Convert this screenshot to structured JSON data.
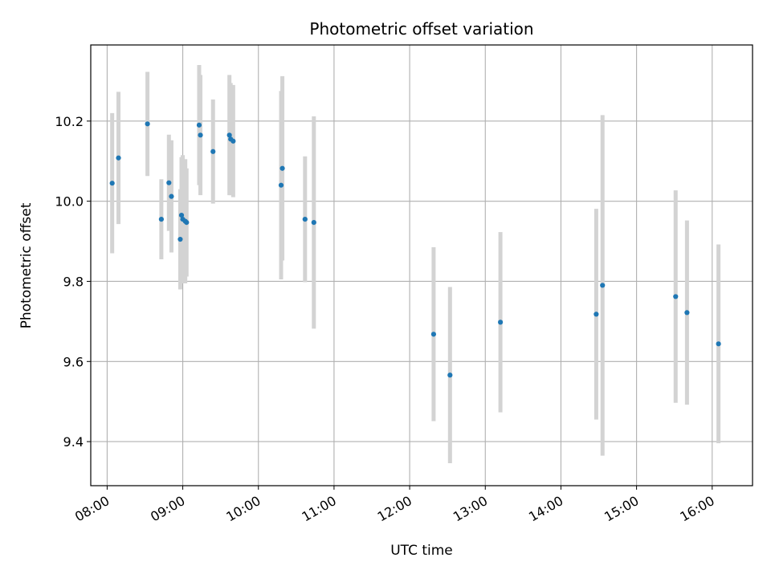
{
  "chart_data": {
    "type": "scatter",
    "title": "Photometric offset variation",
    "xlabel": "UTC time",
    "ylabel": "Photometric offset",
    "grid": true,
    "x_tick_labels": [
      "08:00",
      "09:00",
      "10:00",
      "11:00",
      "12:00",
      "13:00",
      "14:00",
      "15:00",
      "16:00"
    ],
    "y_tick_labels": [
      "9.4",
      "9.6",
      "9.8",
      "10.0",
      "10.2"
    ],
    "xlim": [
      "07:47",
      "16:32"
    ],
    "ylim": [
      9.29,
      10.39
    ],
    "colors": {
      "points": "#1f77b4",
      "errorbars": "#d3d3d3",
      "grid": "#b0b0b0"
    },
    "series": [
      {
        "points": [
          {
            "x": "08:04",
            "y": 10.045,
            "yerr": 0.175
          },
          {
            "x": "08:09",
            "y": 10.108,
            "yerr": 0.165
          },
          {
            "x": "08:32",
            "y": 10.193,
            "yerr": 0.13
          },
          {
            "x": "08:43",
            "y": 9.955,
            "yerr": 0.1
          },
          {
            "x": "08:49",
            "y": 10.046,
            "yerr": 0.12
          },
          {
            "x": "08:51",
            "y": 10.012,
            "yerr": 0.14
          },
          {
            "x": "08:58",
            "y": 9.905,
            "yerr": 0.125
          },
          {
            "x": "08:59",
            "y": 9.965,
            "yerr": 0.145
          },
          {
            "x": "09:00",
            "y": 9.955,
            "yerr": 0.16
          },
          {
            "x": "09:02",
            "y": 9.95,
            "yerr": 0.155
          },
          {
            "x": "09:03",
            "y": 9.947,
            "yerr": 0.135
          },
          {
            "x": "09:13",
            "y": 10.19,
            "yerr": 0.15
          },
          {
            "x": "09:14",
            "y": 10.165,
            "yerr": 0.15
          },
          {
            "x": "09:24",
            "y": 10.124,
            "yerr": 0.13
          },
          {
            "x": "09:37",
            "y": 10.165,
            "yerr": 0.15
          },
          {
            "x": "09:38",
            "y": 10.155,
            "yerr": 0.14
          },
          {
            "x": "09:40",
            "y": 10.15,
            "yerr": 0.14
          },
          {
            "x": "10:18",
            "y": 10.04,
            "yerr": 0.235
          },
          {
            "x": "10:19",
            "y": 10.082,
            "yerr": 0.23
          },
          {
            "x": "10:37",
            "y": 9.955,
            "yerr": 0.157
          },
          {
            "x": "10:44",
            "y": 9.947,
            "yerr": 0.265
          },
          {
            "x": "12:19",
            "y": 9.668,
            "yerr": 0.217
          },
          {
            "x": "12:32",
            "y": 9.566,
            "yerr": 0.22
          },
          {
            "x": "13:12",
            "y": 9.698,
            "yerr": 0.225
          },
          {
            "x": "14:28",
            "y": 9.718,
            "yerr": 0.263
          },
          {
            "x": "14:33",
            "y": 9.79,
            "yerr": 0.425
          },
          {
            "x": "15:31",
            "y": 9.762,
            "yerr": 0.265
          },
          {
            "x": "15:40",
            "y": 9.722,
            "yerr": 0.23
          },
          {
            "x": "16:05",
            "y": 9.644,
            "yerr": 0.248
          }
        ]
      }
    ]
  }
}
